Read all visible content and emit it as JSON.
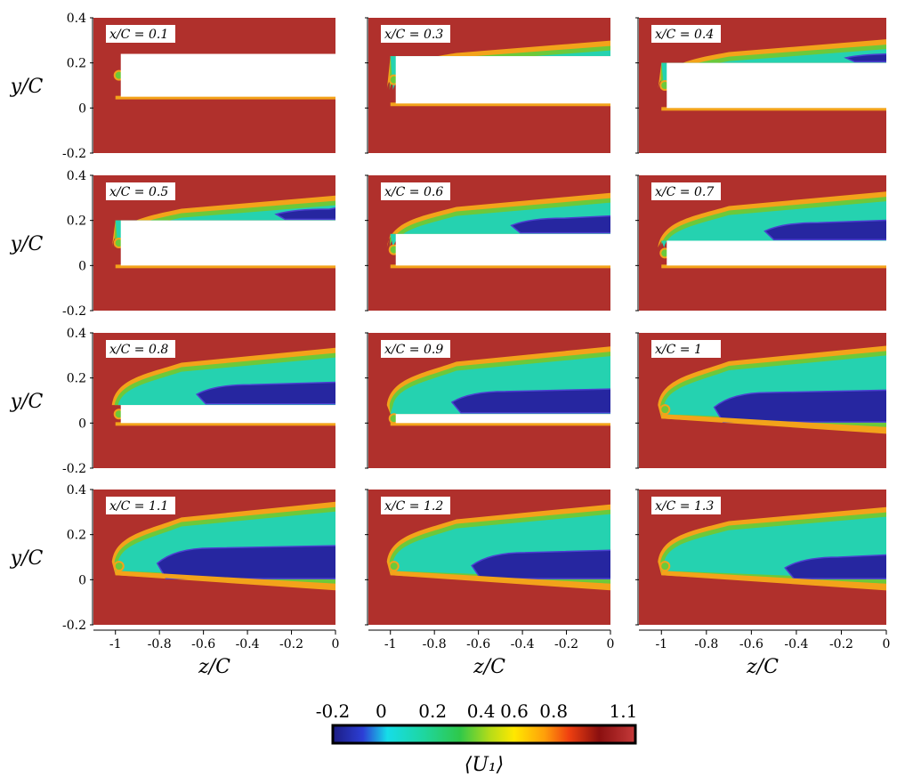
{
  "chart_data": {
    "type": "heatmap",
    "xlabel": "z/C",
    "ylabel": "y/C",
    "xlim": [
      -1.1,
      0
    ],
    "ylim": [
      -0.2,
      0.4
    ],
    "xticks": [
      "-1",
      "-0.8",
      "-0.6",
      "-0.4",
      "-0.2",
      "0"
    ],
    "yticks": [
      "0.4",
      "0.2",
      "0",
      "-0.2"
    ],
    "colorbar": {
      "title": "⟨U₁⟩",
      "ticks": [
        "-0.2",
        "0",
        "0.2",
        "0.4",
        "0.6",
        "0.8",
        "1.1"
      ],
      "range": [
        -0.2,
        1.1
      ],
      "colors": [
        "#1c1c82",
        "#2c3fd6",
        "#16dde8",
        "#1ed6a0",
        "#2fc84a",
        "#b6dc18",
        "#ffe800",
        "#ff9f0a",
        "#f04010",
        "#8a0f0f",
        "#c63a3a"
      ]
    },
    "panels": [
      {
        "label": "x/C = 0.1",
        "airfoil_top": 0.24,
        "airfoil_bottom": 0.05,
        "wake_strength": 0.0
      },
      {
        "label": "x/C = 0.3",
        "airfoil_top": 0.23,
        "airfoil_bottom": 0.02,
        "wake_strength": 0.1
      },
      {
        "label": "x/C = 0.4",
        "airfoil_top": 0.2,
        "airfoil_bottom": 0.0,
        "wake_strength": 0.2
      },
      {
        "label": "x/C = 0.5",
        "airfoil_top": 0.2,
        "airfoil_bottom": 0.0,
        "wake_strength": 0.3
      },
      {
        "label": "x/C = 0.6",
        "airfoil_top": 0.14,
        "airfoil_bottom": 0.0,
        "wake_strength": 0.5
      },
      {
        "label": "x/C = 0.7",
        "airfoil_top": 0.11,
        "airfoil_bottom": 0.0,
        "wake_strength": 0.6
      },
      {
        "label": "x/C = 0.8",
        "airfoil_top": 0.08,
        "airfoil_bottom": 0.0,
        "wake_strength": 0.7
      },
      {
        "label": "x/C = 0.9",
        "airfoil_top": 0.04,
        "airfoil_bottom": 0.0,
        "wake_strength": 0.8
      },
      {
        "label": "x/C = 1",
        "airfoil_top": null,
        "airfoil_bottom": null,
        "wake_strength": 0.85
      },
      {
        "label": "x/C = 1.1",
        "airfoil_top": null,
        "airfoil_bottom": null,
        "wake_strength": 0.9
      },
      {
        "label": "x/C = 1.2",
        "airfoil_top": null,
        "airfoil_bottom": null,
        "wake_strength": 0.7
      },
      {
        "label": "x/C = 1.3",
        "airfoil_top": null,
        "airfoil_bottom": null,
        "wake_strength": 0.5
      }
    ]
  }
}
